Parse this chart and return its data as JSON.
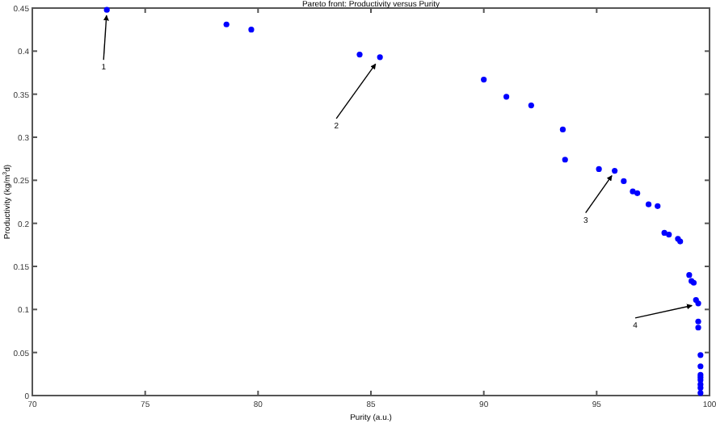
{
  "chart_data": {
    "type": "scatter",
    "title": "Pareto front: Productivity versus Purity",
    "xlabel": "Purity (a.u.)",
    "ylabel": "Productivity (kg/m$^{3}$d)",
    "xlim": [
      70,
      100
    ],
    "xticks": [
      70,
      75,
      80,
      85,
      90,
      95,
      100
    ],
    "ylim": [
      0,
      0.45
    ],
    "yticks": [
      0,
      0.05,
      0.1,
      0.15,
      0.2,
      0.25,
      0.3,
      0.35,
      0.4,
      0.45
    ],
    "grid": false,
    "marker": "circle",
    "series": [
      {
        "color": "#0000ff",
        "x": [
          73.3,
          78.6,
          79.7,
          84.5,
          85.4,
          90.0,
          91.0,
          92.1,
          93.5,
          93.6,
          95.1,
          95.8,
          96.2,
          96.6,
          96.8,
          97.3,
          97.7,
          98.0,
          98.2,
          98.6,
          98.7,
          99.1,
          99.2,
          99.3,
          99.4,
          99.5,
          99.5,
          99.5,
          99.6,
          99.6,
          99.6,
          99.6,
          99.6,
          99.6,
          99.6,
          99.6
        ],
        "values": [
          0.448,
          0.431,
          0.425,
          0.396,
          0.393,
          0.367,
          0.347,
          0.337,
          0.309,
          0.274,
          0.263,
          0.261,
          0.249,
          0.237,
          0.235,
          0.222,
          0.22,
          0.189,
          0.187,
          0.182,
          0.179,
          0.14,
          0.133,
          0.131,
          0.111,
          0.107,
          0.086,
          0.079,
          0.047,
          0.034,
          0.024,
          0.021,
          0.018,
          0.013,
          0.009,
          0.003
        ]
      }
    ],
    "annotations": [
      {
        "text": "1",
        "x": 73.3,
        "y": 0.448
      },
      {
        "text": "2",
        "x": 85.4,
        "y": 0.393
      },
      {
        "text": "3",
        "x": 95.8,
        "y": 0.261
      },
      {
        "text": "4",
        "x": 99.5,
        "y": 0.107
      }
    ]
  }
}
